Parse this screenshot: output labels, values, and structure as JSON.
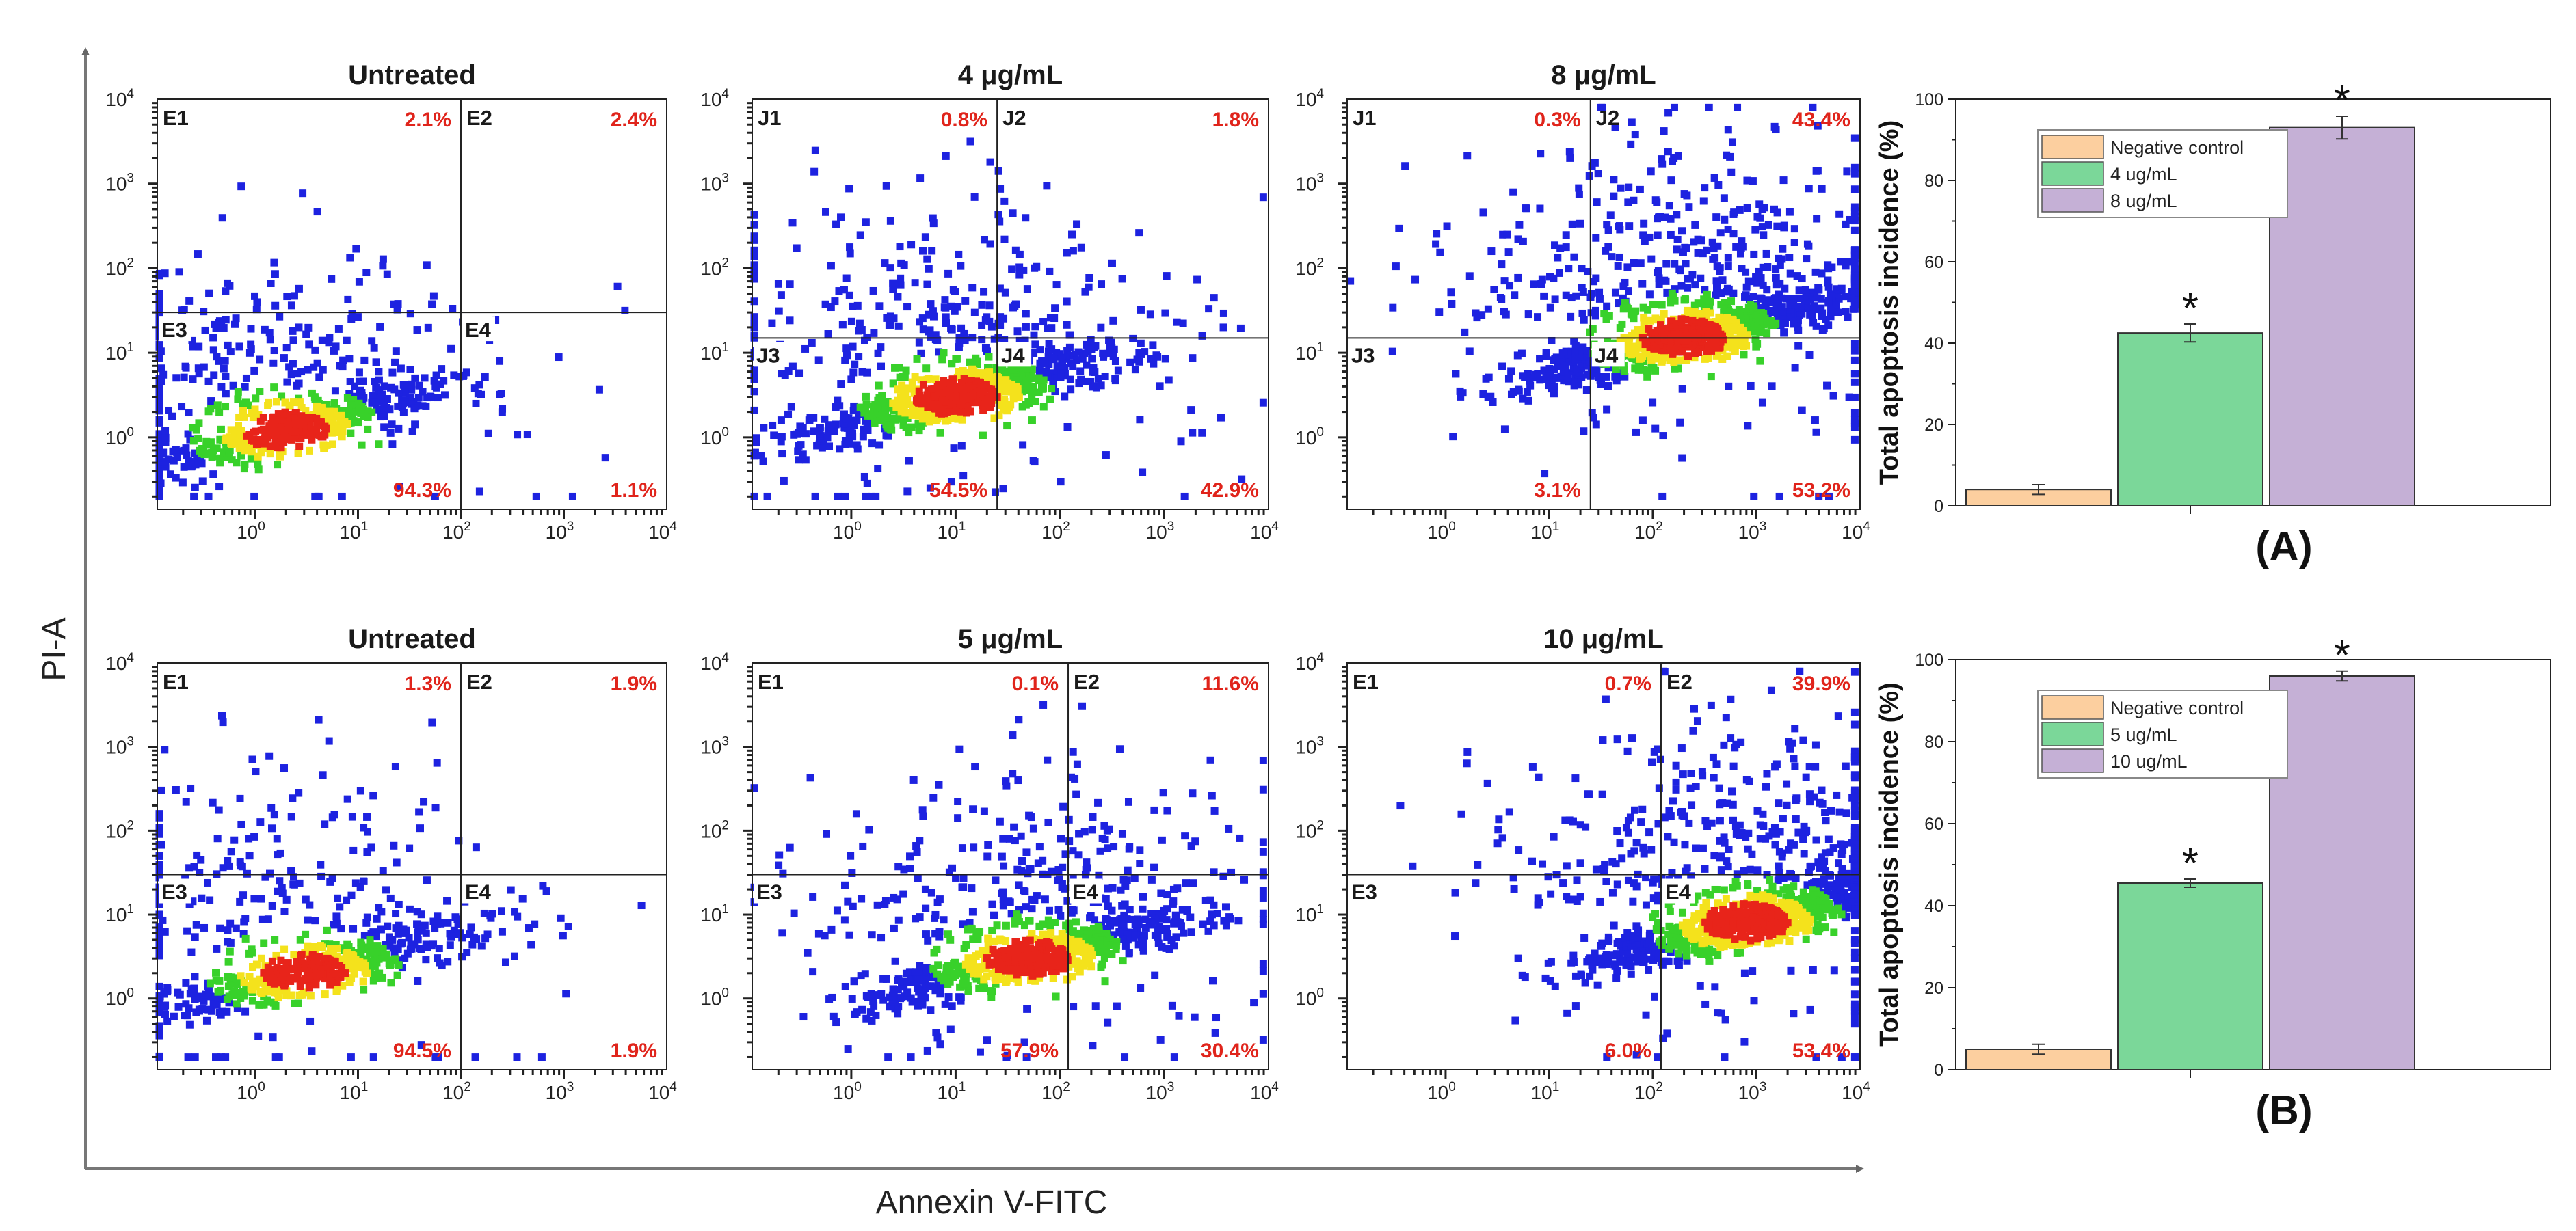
{
  "figure": {
    "x_axis_label": "Annexin V-FITC",
    "y_axis_label": "PI-A",
    "colors": {
      "quadrant_pct": "#e0241b",
      "density_low": "#1d22e0",
      "density_mid": "#38d12a",
      "density_high": "#f4e21c",
      "density_peak": "#e8241a",
      "bar_negative": "#fccf9f",
      "bar_low": "#7bd799",
      "bar_high": "#c5b0d6"
    }
  },
  "chart_data": [
    {
      "type": "scatter",
      "subtype": "flow-cytometry-density",
      "title": "Untreated",
      "row": "top",
      "quadrants": [
        "E1",
        "E2",
        "E3",
        "E4"
      ],
      "percentages": {
        "UL": "2.1%",
        "UR": "2.4%",
        "LL": "94.3%",
        "LR": "1.1%"
      },
      "gate": {
        "x": 100,
        "y": 30
      },
      "population": {
        "x": 2,
        "y": 1.2
      },
      "density": "low"
    },
    {
      "type": "scatter",
      "subtype": "flow-cytometry-density",
      "title": "4 μg/mL",
      "row": "top",
      "quadrants": [
        "J1",
        "J2",
        "J3",
        "J4"
      ],
      "percentages": {
        "UL": "0.8%",
        "UR": "1.8%",
        "LL": "54.5%",
        "LR": "42.9%"
      },
      "gate": {
        "x": 25,
        "y": 15
      },
      "population": {
        "x": 10,
        "y": 3
      },
      "density": "medium"
    },
    {
      "type": "scatter",
      "subtype": "flow-cytometry-density",
      "title": "8 μg/mL",
      "row": "top",
      "quadrants": [
        "J1",
        "J2",
        "J3",
        "J4"
      ],
      "percentages": {
        "UL": "0.3%",
        "UR": "43.4%",
        "LL": "3.1%",
        "LR": "53.2%"
      },
      "gate": {
        "x": 25,
        "y": 15
      },
      "population": {
        "x": 200,
        "y": 15
      },
      "density": "high"
    },
    {
      "type": "scatter",
      "subtype": "flow-cytometry-density",
      "title": "Untreated",
      "row": "bottom",
      "quadrants": [
        "E1",
        "E2",
        "E3",
        "E4"
      ],
      "percentages": {
        "UL": "1.3%",
        "UR": "1.9%",
        "LL": "94.5%",
        "LR": "1.9%"
      },
      "gate": {
        "x": 100,
        "y": 30
      },
      "population": {
        "x": 3,
        "y": 2
      },
      "density": "low"
    },
    {
      "type": "scatter",
      "subtype": "flow-cytometry-density",
      "title": "5 μg/mL",
      "row": "bottom",
      "quadrants": [
        "E1",
        "E2",
        "E3",
        "E4"
      ],
      "percentages": {
        "UL": "0.1%",
        "UR": "11.6%",
        "LL": "57.9%",
        "LR": "30.4%"
      },
      "gate": {
        "x": 120,
        "y": 30
      },
      "population": {
        "x": 50,
        "y": 3
      },
      "density": "medium"
    },
    {
      "type": "scatter",
      "subtype": "flow-cytometry-density",
      "title": "10 μg/mL",
      "row": "bottom",
      "quadrants": [
        "E1",
        "E2",
        "E3",
        "E4"
      ],
      "percentages": {
        "UL": "0.7%",
        "UR": "39.9%",
        "LL": "6.0%",
        "LR": "53.4%"
      },
      "gate": {
        "x": 120,
        "y": 30
      },
      "population": {
        "x": 800,
        "y": 8
      },
      "density": "high"
    },
    {
      "type": "bar",
      "panel_label": "(A)",
      "ylabel": "Total apoptosis incidence (%)",
      "ylim": [
        0,
        100
      ],
      "yticks": [
        0,
        20,
        40,
        60,
        80,
        100
      ],
      "categories": [
        "Negative control",
        "4 ug/mL",
        "8 ug/mL"
      ],
      "values": [
        4,
        42.5,
        93
      ],
      "errors": [
        1.2,
        2.2,
        2.8
      ],
      "significant": [
        "",
        "*",
        "*"
      ]
    },
    {
      "type": "bar",
      "panel_label": "(B)",
      "ylabel": "Total apoptosis incidence (%)",
      "ylim": [
        0,
        100
      ],
      "yticks": [
        0,
        20,
        40,
        60,
        80,
        100
      ],
      "categories": [
        "Negative control",
        "5 ug/mL",
        "10 ug/mL"
      ],
      "values": [
        5,
        45.5,
        96
      ],
      "errors": [
        1.2,
        1.0,
        1.2
      ],
      "significant": [
        "",
        "*",
        "*"
      ]
    }
  ]
}
